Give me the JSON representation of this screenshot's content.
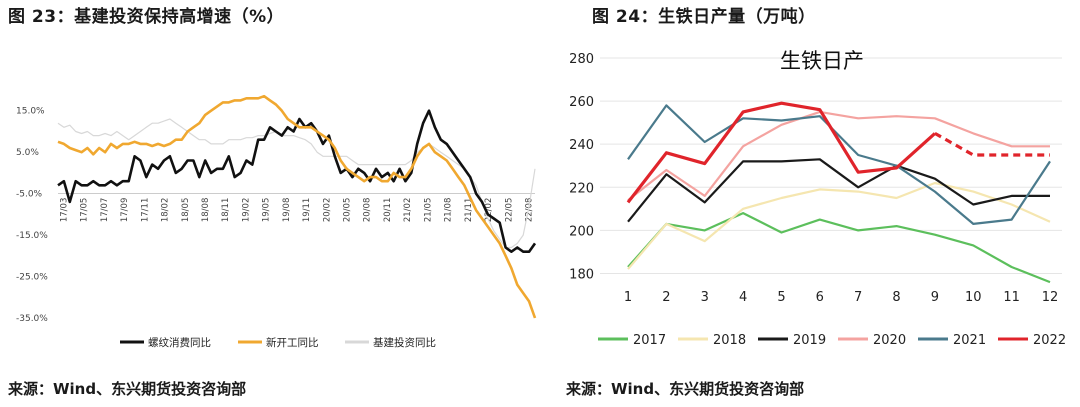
{
  "left": {
    "title": "图 23：基建投资保持高增速（%）",
    "source": "来源：Wind、东兴期货投资咨询部"
  },
  "right": {
    "title": "图 24：生铁日产量（万吨）",
    "source": "来源：Wind、东兴期货投资咨询部"
  },
  "chart_data": [
    {
      "type": "line",
      "title": "",
      "xlabel": "",
      "ylabel": "",
      "ylim": [
        -35,
        20
      ],
      "yticks": [
        15,
        5,
        -5,
        -15,
        -25,
        -35
      ],
      "ytick_labels": [
        "15.0%",
        "5.0%",
        "-5.0%",
        "-15.0%",
        "-25.0%",
        "-35.0%"
      ],
      "x_tick_labels": [
        "17/03",
        "17/05",
        "17/07",
        "17/09",
        "17/11",
        "18/02",
        "18/05",
        "18/08",
        "18/11",
        "19/02",
        "19/05",
        "19/08",
        "19/11",
        "20/02",
        "20/05",
        "20/08",
        "20/11",
        "21/02",
        "21/05",
        "21/08",
        "21/11",
        "22/02",
        "22/05",
        "22/08"
      ],
      "grid": false,
      "legend_position": "bottom",
      "series": [
        {
          "name": "螺纹消费同比",
          "color": "#111111",
          "points": [
            [
              0,
              -3
            ],
            [
              1,
              -2
            ],
            [
              2,
              -7
            ],
            [
              3,
              -2
            ],
            [
              4,
              -3
            ],
            [
              5,
              -3
            ],
            [
              6,
              -2
            ],
            [
              7,
              -3
            ],
            [
              8,
              -3
            ],
            [
              9,
              -2
            ],
            [
              10,
              -3
            ],
            [
              11,
              -2
            ],
            [
              12,
              -2
            ],
            [
              13,
              4
            ],
            [
              14,
              3
            ],
            [
              15,
              -1
            ],
            [
              16,
              2
            ],
            [
              17,
              1
            ],
            [
              18,
              3
            ],
            [
              19,
              4
            ],
            [
              20,
              0
            ],
            [
              21,
              1
            ],
            [
              22,
              3
            ],
            [
              23,
              3
            ],
            [
              24,
              -1
            ],
            [
              25,
              3
            ],
            [
              26,
              0
            ],
            [
              27,
              1
            ],
            [
              28,
              1
            ],
            [
              29,
              4
            ],
            [
              30,
              -1
            ],
            [
              31,
              0
            ],
            [
              32,
              3
            ],
            [
              33,
              2
            ],
            [
              34,
              8
            ],
            [
              35,
              8
            ],
            [
              36,
              11
            ],
            [
              37,
              10
            ],
            [
              38,
              9
            ],
            [
              39,
              11
            ],
            [
              40,
              10
            ],
            [
              41,
              13
            ],
            [
              42,
              11
            ],
            [
              43,
              12
            ],
            [
              44,
              10
            ],
            [
              45,
              7
            ],
            [
              46,
              9
            ],
            [
              47,
              4
            ],
            [
              48,
              0
            ],
            [
              49,
              1
            ],
            [
              50,
              -1
            ],
            [
              51,
              1
            ],
            [
              52,
              0
            ],
            [
              53,
              -2
            ],
            [
              54,
              1
            ],
            [
              55,
              -1
            ],
            [
              56,
              0
            ],
            [
              57,
              -2
            ],
            [
              58,
              1
            ],
            [
              59,
              -2
            ],
            [
              60,
              0
            ],
            [
              61,
              7
            ],
            [
              62,
              12
            ],
            [
              63,
              15
            ],
            [
              64,
              11
            ],
            [
              65,
              8
            ],
            [
              66,
              7
            ],
            [
              67,
              5
            ],
            [
              68,
              3
            ],
            [
              69,
              1
            ],
            [
              70,
              -1
            ],
            [
              71,
              -5
            ],
            [
              72,
              -7
            ],
            [
              73,
              -10
            ],
            [
              74,
              -11
            ],
            [
              75,
              -12
            ],
            [
              76,
              -18
            ],
            [
              77,
              -19
            ],
            [
              78,
              -18
            ],
            [
              79,
              -19
            ],
            [
              80,
              -19
            ],
            [
              81,
              -17
            ]
          ]
        },
        {
          "name": "新开工同比",
          "color": "#f0a830",
          "points": [
            [
              0,
              7.5
            ],
            [
              1,
              7
            ],
            [
              2,
              6
            ],
            [
              3,
              5.5
            ],
            [
              4,
              5
            ],
            [
              5,
              6
            ],
            [
              6,
              4.5
            ],
            [
              7,
              6
            ],
            [
              8,
              5
            ],
            [
              9,
              7
            ],
            [
              10,
              6
            ],
            [
              11,
              7
            ],
            [
              12,
              7
            ],
            [
              13,
              7.5
            ],
            [
              14,
              7
            ],
            [
              15,
              7
            ],
            [
              16,
              6.5
            ],
            [
              17,
              7
            ],
            [
              18,
              6.5
            ],
            [
              19,
              7
            ],
            [
              20,
              8
            ],
            [
              21,
              8
            ],
            [
              22,
              10
            ],
            [
              23,
              11
            ],
            [
              24,
              12
            ],
            [
              25,
              14
            ],
            [
              26,
              15
            ],
            [
              27,
              16
            ],
            [
              28,
              17
            ],
            [
              29,
              17
            ],
            [
              30,
              17.5
            ],
            [
              31,
              17.5
            ],
            [
              32,
              18
            ],
            [
              33,
              18
            ],
            [
              34,
              18
            ],
            [
              35,
              18.5
            ],
            [
              36,
              17.5
            ],
            [
              37,
              16.5
            ],
            [
              38,
              15
            ],
            [
              39,
              13
            ],
            [
              40,
              12
            ],
            [
              41,
              11
            ],
            [
              42,
              11
            ],
            [
              43,
              11
            ],
            [
              44,
              10
            ],
            [
              45,
              9
            ],
            [
              46,
              8
            ],
            [
              47,
              6
            ],
            [
              48,
              3
            ],
            [
              49,
              1
            ],
            [
              50,
              0
            ],
            [
              51,
              -1
            ],
            [
              52,
              -2
            ],
            [
              53,
              -1
            ],
            [
              54,
              -1
            ],
            [
              55,
              -2
            ],
            [
              56,
              -2
            ],
            [
              57,
              0
            ],
            [
              58,
              -1
            ],
            [
              59,
              -1
            ],
            [
              60,
              1
            ],
            [
              61,
              4
            ],
            [
              62,
              6
            ],
            [
              63,
              7
            ],
            [
              64,
              5
            ],
            [
              65,
              4
            ],
            [
              66,
              3
            ],
            [
              67,
              1
            ],
            [
              68,
              -1
            ],
            [
              69,
              -3
            ],
            [
              70,
              -6
            ],
            [
              71,
              -9
            ],
            [
              72,
              -11
            ],
            [
              73,
              -13
            ],
            [
              74,
              -15
            ],
            [
              75,
              -17
            ],
            [
              76,
              -20
            ],
            [
              77,
              -23
            ],
            [
              78,
              -27
            ],
            [
              79,
              -29
            ],
            [
              80,
              -31
            ],
            [
              81,
              -35
            ]
          ]
        },
        {
          "name": "基建投资同比",
          "color": "#d8d8d8",
          "points": [
            [
              0,
              12
            ],
            [
              1,
              11
            ],
            [
              2,
              11.5
            ],
            [
              3,
              10
            ],
            [
              4,
              9.5
            ],
            [
              5,
              10
            ],
            [
              6,
              9
            ],
            [
              7,
              9
            ],
            [
              8,
              9.5
            ],
            [
              9,
              9
            ],
            [
              10,
              10
            ],
            [
              11,
              9
            ],
            [
              12,
              8
            ],
            [
              13,
              9
            ],
            [
              14,
              10
            ],
            [
              15,
              11
            ],
            [
              16,
              12
            ],
            [
              17,
              12
            ],
            [
              18,
              12.5
            ],
            [
              19,
              13
            ],
            [
              20,
              12
            ],
            [
              21,
              11
            ],
            [
              22,
              10
            ],
            [
              23,
              9
            ],
            [
              24,
              8
            ],
            [
              25,
              8
            ],
            [
              26,
              7
            ],
            [
              27,
              7
            ],
            [
              28,
              7
            ],
            [
              29,
              8
            ],
            [
              30,
              8
            ],
            [
              31,
              8
            ],
            [
              32,
              8.5
            ],
            [
              33,
              8.5
            ],
            [
              34,
              9
            ],
            [
              35,
              9
            ],
            [
              36,
              9.5
            ],
            [
              37,
              10
            ],
            [
              38,
              9
            ],
            [
              39,
              9
            ],
            [
              40,
              9
            ],
            [
              41,
              8.5
            ],
            [
              42,
              8
            ],
            [
              43,
              7
            ],
            [
              44,
              5
            ],
            [
              45,
              4
            ],
            [
              46,
              4
            ],
            [
              47,
              4
            ],
            [
              48,
              4
            ],
            [
              49,
              4
            ],
            [
              50,
              3
            ],
            [
              51,
              2
            ],
            [
              52,
              2
            ],
            [
              53,
              2
            ],
            [
              54,
              2
            ],
            [
              55,
              2
            ],
            [
              56,
              2
            ],
            [
              57,
              2
            ],
            [
              58,
              2
            ],
            [
              59,
              2
            ],
            [
              60,
              3
            ],
            [
              61,
              5
            ],
            [
              62,
              6
            ],
            [
              63,
              7
            ],
            [
              64,
              6
            ],
            [
              65,
              5
            ],
            [
              66,
              4
            ],
            [
              67,
              3
            ],
            [
              68,
              2
            ],
            [
              69,
              1
            ],
            [
              70,
              -1
            ],
            [
              71,
              -3
            ],
            [
              72,
              -7
            ],
            [
              73,
              -11
            ],
            [
              74,
              -14
            ],
            [
              75,
              -16
            ],
            [
              76,
              -18
            ],
            [
              77,
              -18
            ],
            [
              78,
              -17
            ],
            [
              79,
              -15
            ],
            [
              80,
              -8
            ],
            [
              81,
              1
            ]
          ]
        }
      ]
    },
    {
      "type": "line",
      "title": "生铁日产",
      "xlabel": "",
      "ylabel": "",
      "ylim": [
        170,
        280
      ],
      "yticks": [
        180,
        200,
        220,
        240,
        260,
        280
      ],
      "categories": [
        "1",
        "2",
        "3",
        "4",
        "5",
        "6",
        "7",
        "8",
        "9",
        "10",
        "11",
        "12"
      ],
      "grid": true,
      "legend_position": "bottom",
      "series": [
        {
          "name": "2017",
          "color": "#5cbf5c",
          "values": [
            183,
            203,
            200,
            208,
            199,
            205,
            200,
            202,
            198,
            193,
            183,
            176
          ]
        },
        {
          "name": "2018",
          "color": "#f5e6b0",
          "values": [
            182,
            203,
            195,
            210,
            215,
            219,
            218,
            215,
            222,
            218,
            212,
            204
          ]
        },
        {
          "name": "2019",
          "color": "#1a1a1a",
          "values": [
            204,
            226,
            213,
            232,
            232,
            233,
            220,
            230,
            224,
            212,
            216,
            216
          ]
        },
        {
          "name": "2020",
          "color": "#f4a3a0",
          "values": [
            214,
            228,
            216,
            239,
            249,
            255,
            252,
            253,
            252,
            245,
            239,
            239
          ]
        },
        {
          "name": "2021",
          "color": "#4a7a8c",
          "values": [
            233,
            258,
            241,
            252,
            251,
            253,
            235,
            230,
            218,
            203,
            205,
            232
          ]
        },
        {
          "name": "2022",
          "color": "#e0242b",
          "values": [
            213,
            236,
            231,
            255,
            259,
            256,
            227,
            229,
            245,
            235,
            235,
            235
          ],
          "dashed_from_index": 8
        }
      ]
    }
  ]
}
